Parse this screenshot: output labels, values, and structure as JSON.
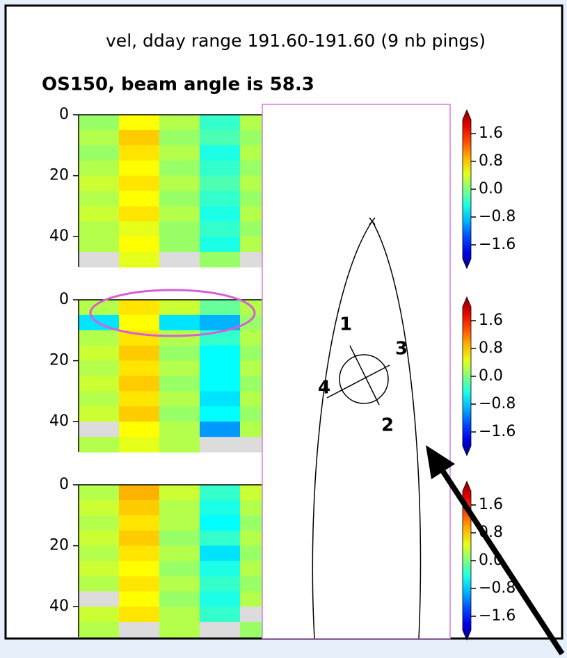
{
  "figure_title": "vel, dday range 191.60-191.60 (9 nb pings)",
  "diagram": {
    "beam_labels": [
      "1",
      "2",
      "3",
      "4"
    ]
  },
  "chart_data": [
    {
      "type": "heatmap",
      "title": "OS150, beam angle is 58.3",
      "colormap": "jet",
      "clim": [
        -2,
        2
      ],
      "ylim": [
        0,
        50
      ],
      "yticks": [
        0,
        20,
        40
      ],
      "cbar_ticks": [
        1.6,
        0.8,
        {
          "value": 0,
          "label": "0.0"
        },
        {
          "value": -0.8,
          "label": "−0.8"
        },
        {
          "value": -1.6,
          "label": "−1.6"
        }
      ],
      "values": [
        [
          0.1,
          0.5,
          0.2,
          -0.3,
          0.2
        ],
        [
          0.2,
          0.7,
          0.1,
          -0.2,
          0.1
        ],
        [
          0.1,
          0.6,
          0.2,
          -0.4,
          0.2
        ],
        [
          0.2,
          0.5,
          0.1,
          -0.3,
          0.1
        ],
        [
          0.3,
          0.6,
          0.2,
          -0.2,
          0.2
        ],
        [
          0.2,
          0.5,
          0.1,
          -0.3,
          0.1
        ],
        [
          0.3,
          0.6,
          0.2,
          -0.4,
          0.2
        ],
        [
          0.2,
          0.4,
          0.1,
          -0.3,
          0.1
        ],
        [
          0.2,
          0.5,
          0.1,
          -0.4,
          0.2
        ],
        [
          null,
          0.4,
          null,
          0.1,
          null
        ]
      ]
    },
    {
      "type": "heatmap",
      "colormap": "jet",
      "clim": [
        -2,
        2
      ],
      "ylim": [
        0,
        50
      ],
      "yticks": [
        0,
        20,
        40
      ],
      "cbar_ticks": [
        1.6,
        0.8,
        {
          "value": 0,
          "label": "0.0"
        },
        {
          "value": -0.8,
          "label": "−0.8"
        },
        {
          "value": -1.6,
          "label": "−1.6"
        }
      ],
      "values": [
        [
          0.2,
          0.6,
          0.3,
          -0.1,
          0.2
        ],
        [
          -0.6,
          0.5,
          -0.6,
          -0.8,
          0.1
        ],
        [
          0.2,
          0.6,
          0.2,
          -0.3,
          0.2
        ],
        [
          0.3,
          0.7,
          0.1,
          -0.5,
          0.1
        ],
        [
          0.2,
          0.6,
          0.2,
          -0.5,
          0.2
        ],
        [
          0.3,
          0.7,
          0.1,
          -0.5,
          0.1
        ],
        [
          0.2,
          0.6,
          0.2,
          -0.6,
          0.2
        ],
        [
          0.3,
          0.7,
          0.1,
          -0.5,
          0.1
        ],
        [
          null,
          0.5,
          0.2,
          -0.9,
          0.2
        ],
        [
          0.2,
          0.4,
          0.2,
          null,
          null
        ]
      ]
    },
    {
      "type": "heatmap",
      "colormap": "jet",
      "clim": [
        -2,
        2
      ],
      "ylim": [
        0,
        50
      ],
      "yticks": [
        0,
        20,
        40
      ],
      "cbar_ticks": [
        1.6,
        0.8,
        {
          "value": 0,
          "label": "0.0"
        },
        {
          "value": -0.8,
          "label": "−0.8"
        },
        {
          "value": -1.6,
          "label": "−1.6"
        }
      ],
      "values": [
        [
          0.2,
          0.8,
          0.3,
          -0.3,
          0.3
        ],
        [
          0.3,
          0.7,
          0.2,
          -0.4,
          0.2
        ],
        [
          0.2,
          0.6,
          0.2,
          -0.5,
          0.1
        ],
        [
          0.3,
          0.7,
          0.1,
          -0.3,
          0.2
        ],
        [
          0.2,
          0.6,
          0.2,
          -0.6,
          0.1
        ],
        [
          0.3,
          0.5,
          0.1,
          -0.4,
          0.2
        ],
        [
          0.2,
          0.6,
          0.2,
          -0.3,
          0.1
        ],
        [
          null,
          0.5,
          0.1,
          -0.4,
          0.2
        ],
        [
          0.3,
          0.6,
          0.2,
          -0.3,
          null
        ],
        [
          0.2,
          null,
          0.2,
          null,
          0.1
        ]
      ]
    }
  ]
}
